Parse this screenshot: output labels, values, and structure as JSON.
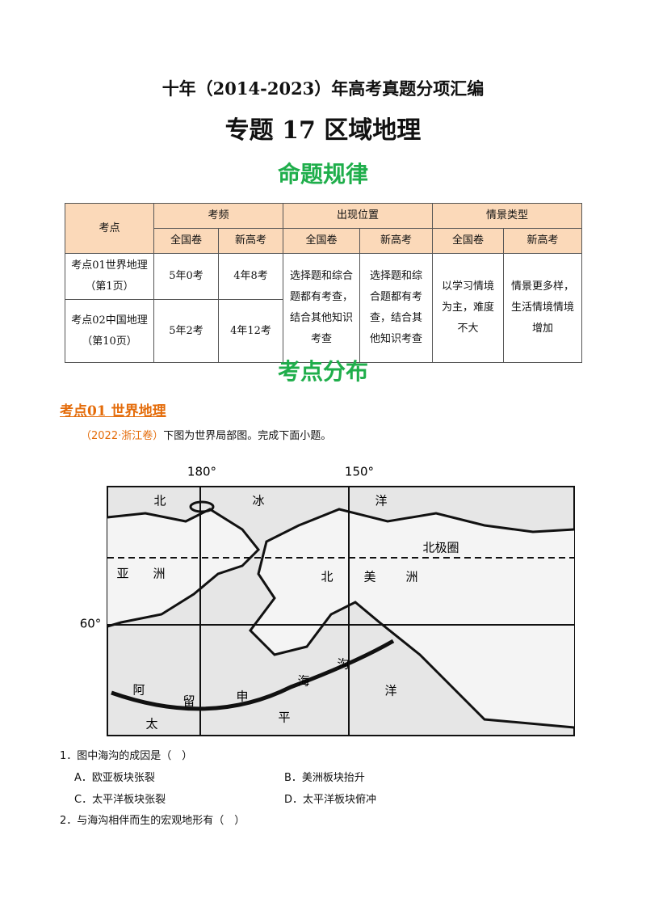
{
  "header": {
    "title": "十年（2014-2023）年高考真题分项汇编",
    "subtitle": "专题 17 区域地理"
  },
  "section1": "命题规律",
  "table": {
    "header_row1": [
      "考点",
      "考频",
      "出现位置",
      "情景类型"
    ],
    "header_row2": [
      "全国卷",
      "新高考",
      "全国卷",
      "新高考",
      "全国卷",
      "新高考"
    ],
    "rows": [
      [
        "考点01世界地理（第1页）",
        "5年0考",
        "4年8考"
      ],
      [
        "考点02中国地理（第10页）",
        "5年2考",
        "4年12考"
      ]
    ],
    "merged": [
      "选择题和综合题都有考查，结合其他知识考查",
      "选择题和综合题都有考查，结合其他知识考查",
      "以学习情境为主，难度不大",
      "情景更多样，生活情境情境增加"
    ]
  },
  "section2": "考点分布",
  "topic": "考点01 世界地理",
  "source": {
    "tag": "（2022·浙江卷）",
    "text": "下图为世界局部图。完成下面小题。"
  },
  "map": {
    "labels": [
      "180°",
      "150°",
      "60°",
      "北极圈",
      "北",
      "冰",
      "洋",
      "亚",
      "洲",
      "北",
      "美",
      "洲",
      "阿",
      "留",
      "申",
      "海",
      "沟",
      "洋",
      "太",
      "平"
    ]
  },
  "questions": [
    {
      "stem": "1．图中海沟的成因是（　）",
      "options": [
        "A．欧亚板块张裂",
        "B．美洲板块抬升",
        "C．太平洋板块张裂",
        "D．太平洋板块俯冲"
      ]
    },
    {
      "stem": "2．与海沟相伴而生的宏观地形有（　）"
    }
  ]
}
